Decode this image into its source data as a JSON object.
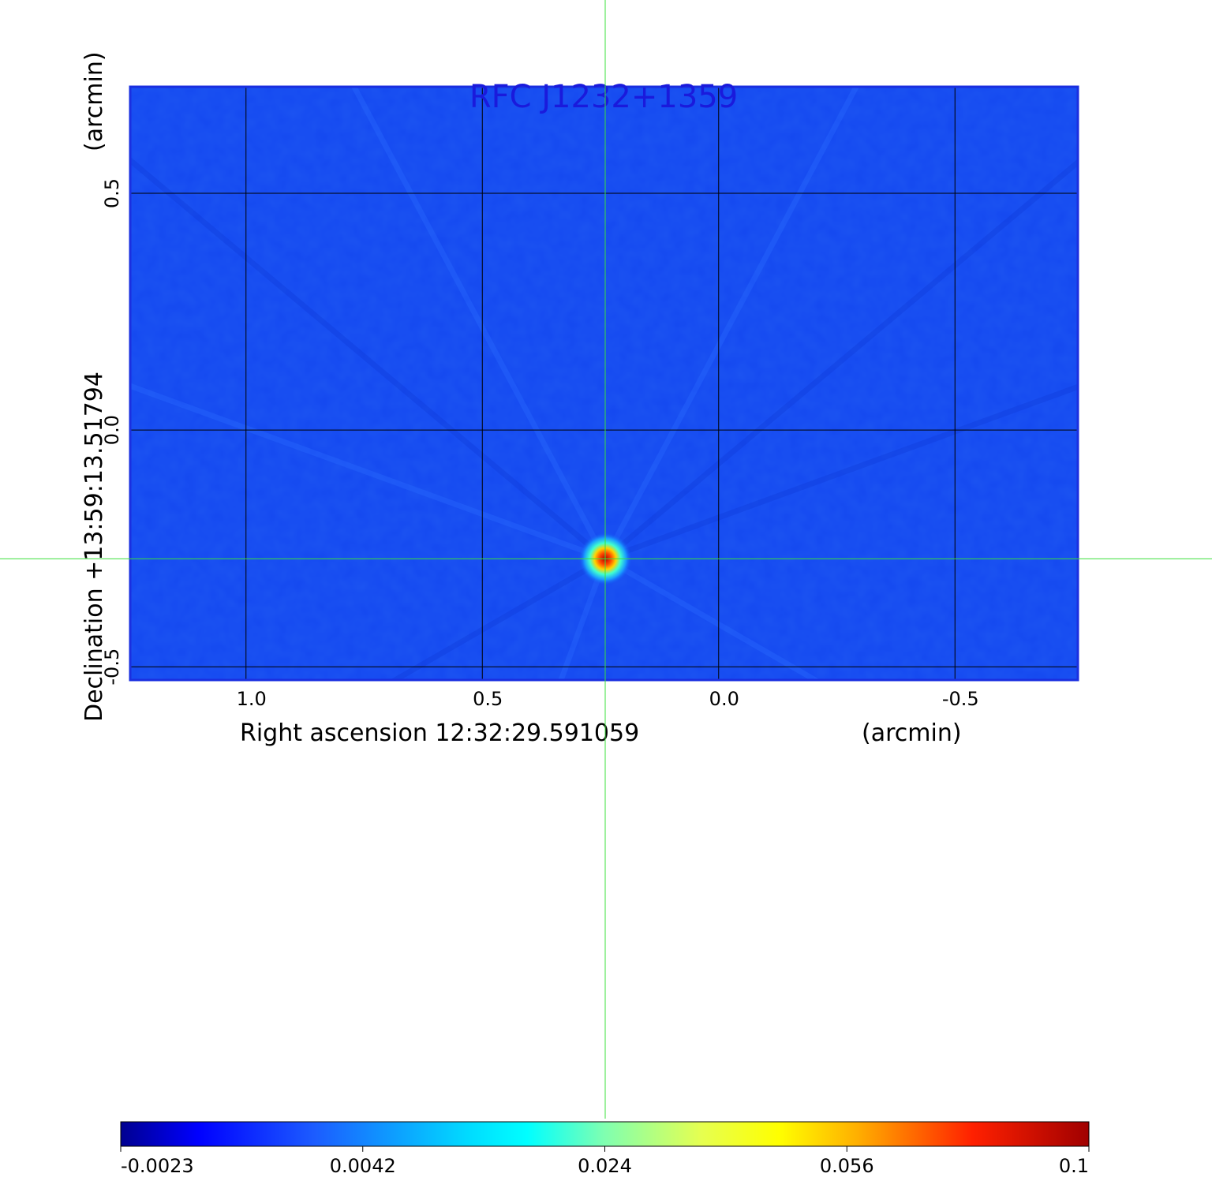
{
  "chart_data": {
    "type": "heatmap",
    "title": "RFC J1232+1359",
    "xlabel": "Right ascension  12:32:29.591059",
    "xunit": "(arcmin)",
    "ylabel": "Declination  +13:59:13.51794",
    "yunit": "(arcmin)",
    "x_ticks": [
      1.0,
      0.5,
      0.0,
      -0.5
    ],
    "x_tick_labels": [
      "1.0",
      "0.5",
      "0.0",
      "-0.5"
    ],
    "y_ticks": [
      0.5,
      0.0,
      -0.5
    ],
    "y_tick_labels": [
      "0.5",
      "0.0",
      "-0.5"
    ],
    "xlim": [
      1.245,
      -0.76
    ],
    "ylim": [
      -0.528,
      0.725
    ],
    "grid": true,
    "source": {
      "x": 0.24,
      "y": -0.272,
      "peak": 0.1
    },
    "crosshair": {
      "x": 0.24,
      "y": -0.272
    },
    "colorbar": {
      "ticks": [
        "-0.0023",
        "0.0042",
        "0.024",
        "0.056",
        "0.1"
      ],
      "min": -0.0023,
      "max": 0.1
    },
    "colors": {
      "title": "#1a1adc",
      "background": "#1448f0",
      "crosshair": "#3be03b",
      "grid": "#000000"
    }
  }
}
